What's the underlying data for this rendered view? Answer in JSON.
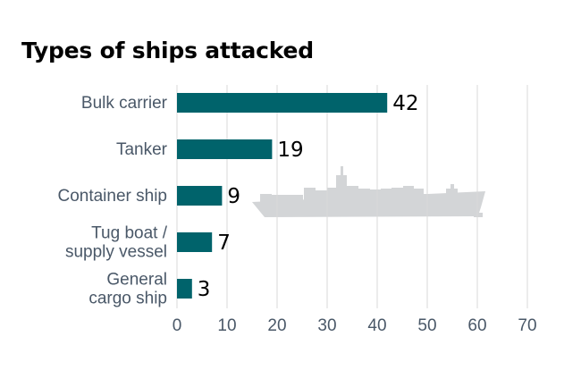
{
  "chart_data": {
    "type": "bar",
    "orientation": "horizontal",
    "title": "Types of ships attacked",
    "categories": [
      [
        "Bulk carrier"
      ],
      [
        "Tanker"
      ],
      [
        "Container ship"
      ],
      [
        "Tug boat /",
        "supply vessel"
      ],
      [
        "General",
        "cargo ship"
      ]
    ],
    "values": [
      42,
      19,
      9,
      7,
      3
    ],
    "data_labels": [
      "42",
      "19",
      "9",
      "7",
      "3"
    ],
    "xlim": [
      0,
      70
    ],
    "xticks": [
      "0",
      "10",
      "20",
      "30",
      "40",
      "50",
      "60",
      "70"
    ],
    "grid": "vertical",
    "colors": {
      "bar": "#00636b",
      "grid": "#d9d9d9",
      "category_text": "#4a5868",
      "tick_text": "#4a5868",
      "value_text": "#000000",
      "ship_silhouette": "#d3d5d7"
    },
    "decoration_icon": "cargo-ship-silhouette"
  }
}
